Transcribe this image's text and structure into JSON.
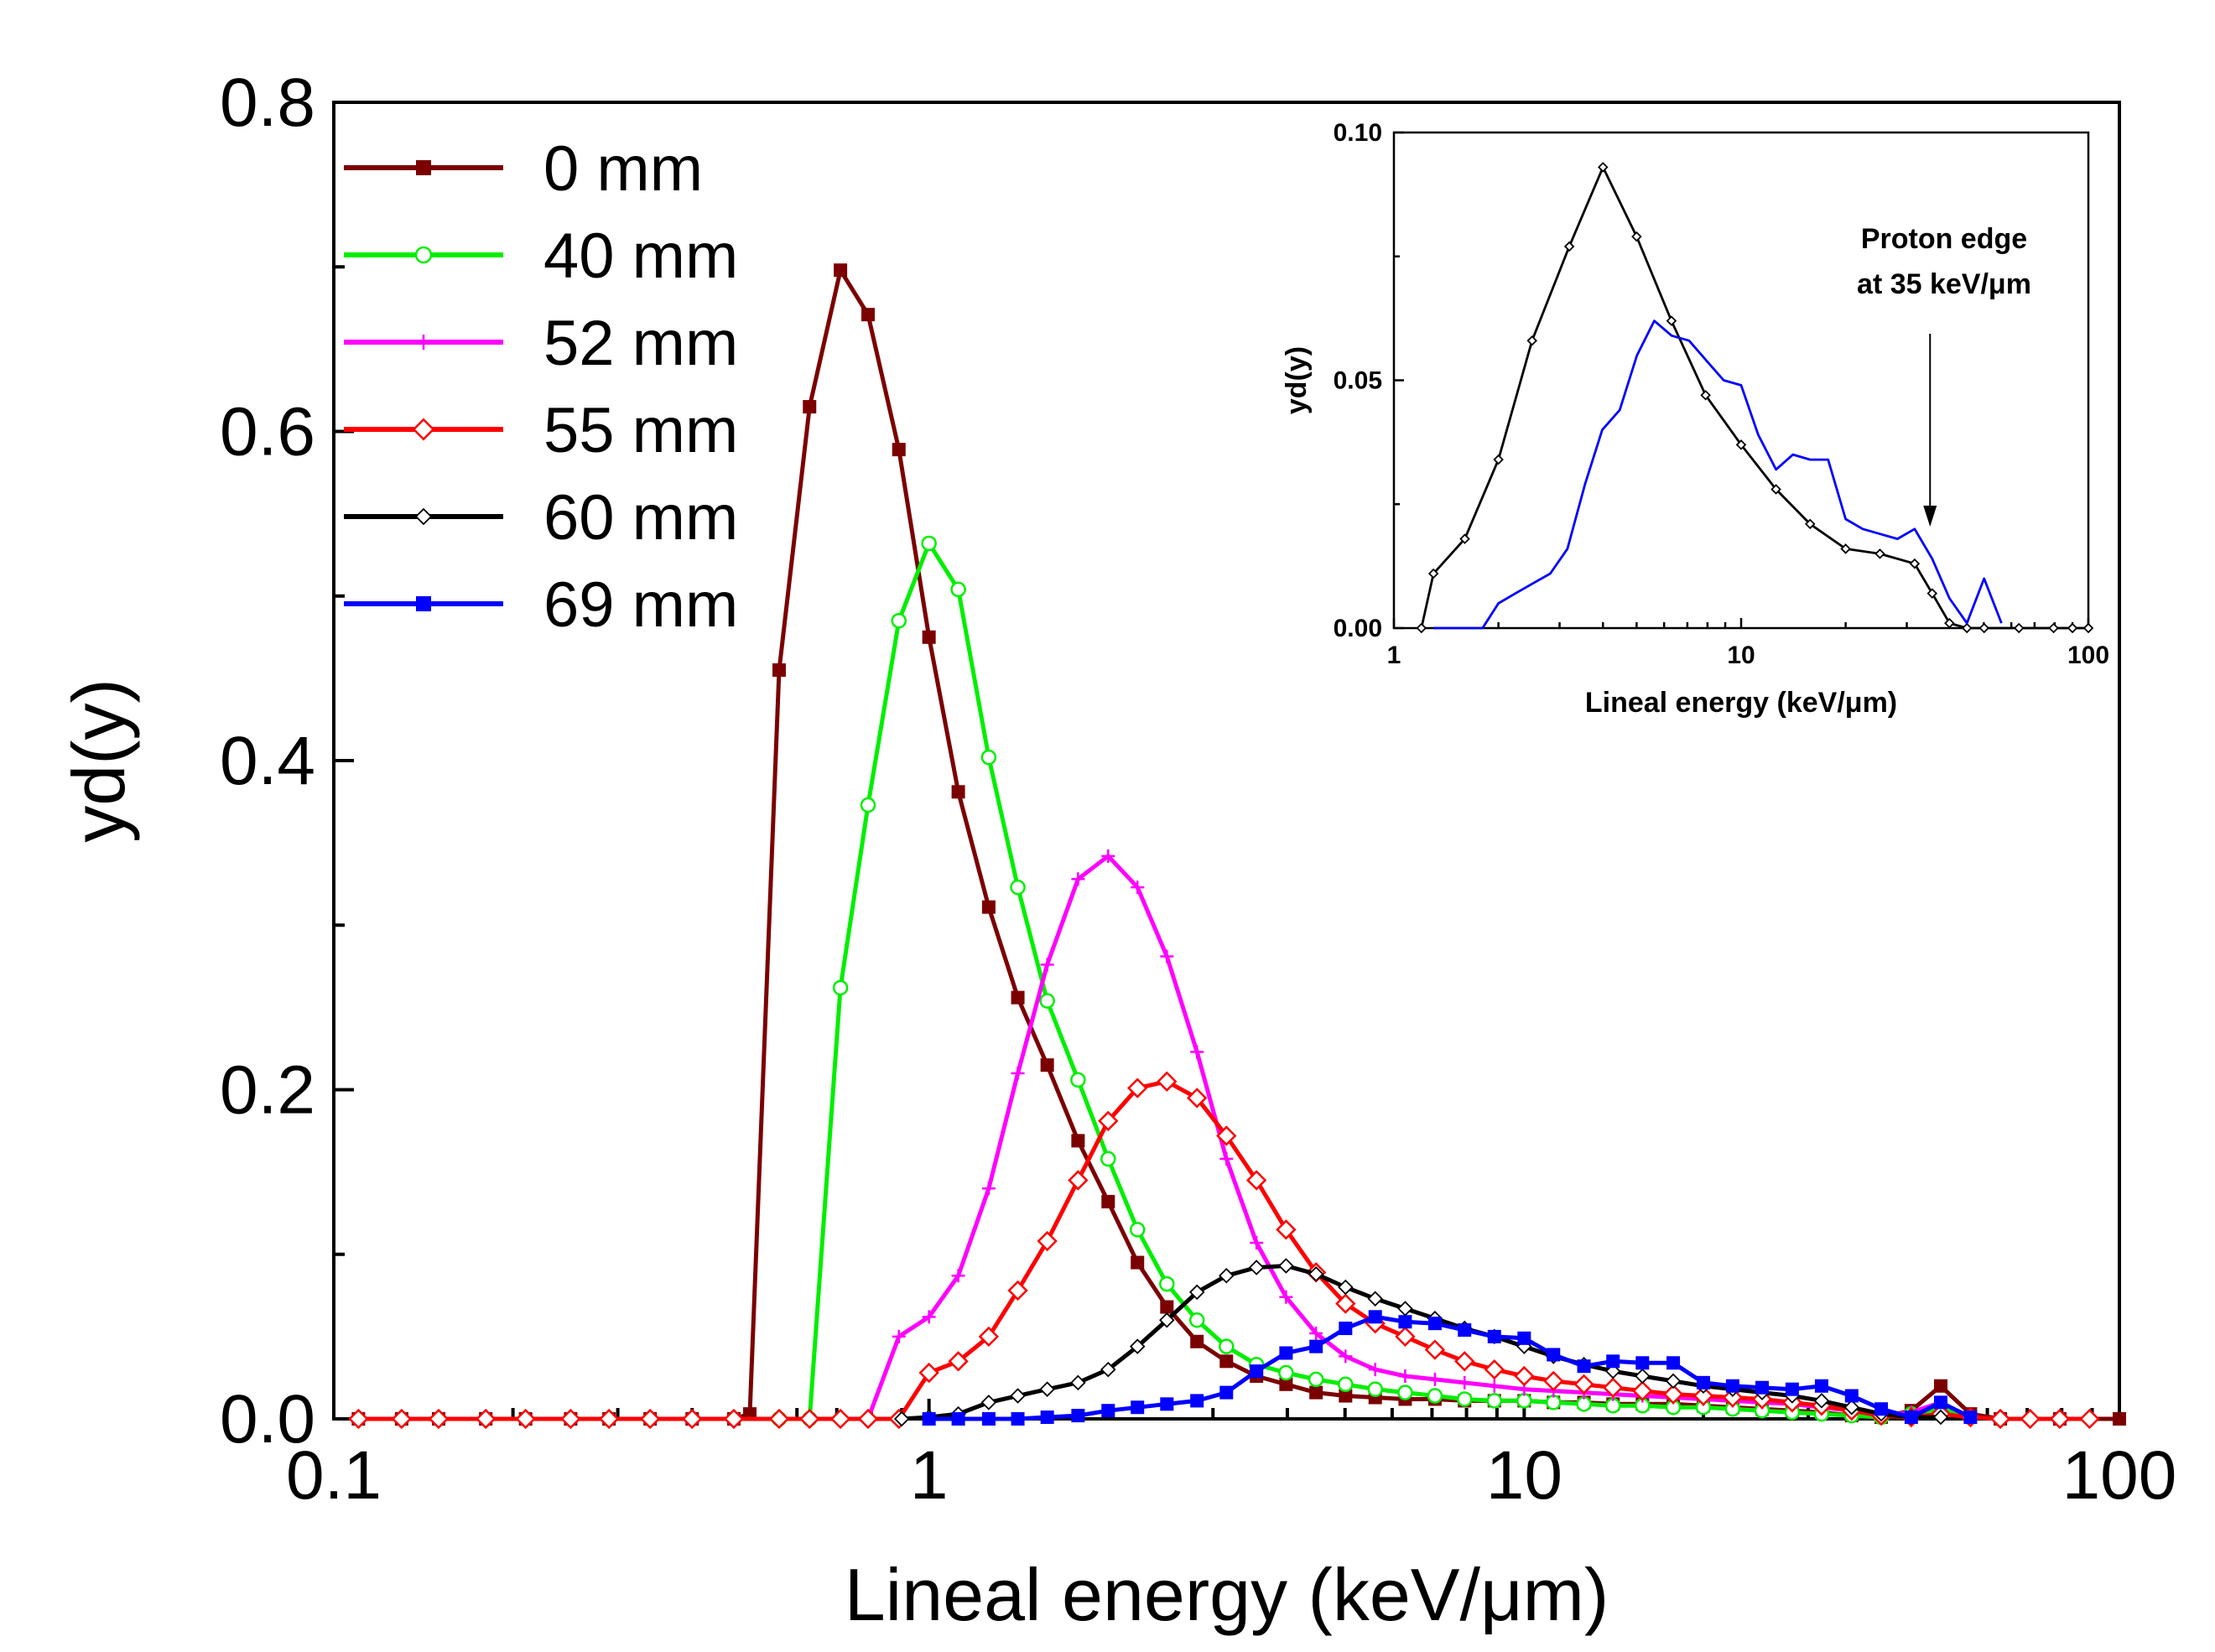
{
  "chart_data": [
    {
      "type": "line",
      "xscale": "log",
      "xlabel": "Lineal energy (keV/μm)",
      "ylabel": "yd(y)",
      "xlim": [
        0.1,
        100
      ],
      "ylim": [
        0,
        0.8
      ],
      "xticks": [
        "0.1",
        "1",
        "10",
        "100"
      ],
      "yticks": [
        "0.0",
        "0.2",
        "0.4",
        "0.6",
        "0.8"
      ],
      "legend_position": "top-left",
      "series": [
        {
          "name": "0 mm",
          "color": "#7b0000",
          "marker": "square-filled",
          "x": [
            0.11,
            0.13,
            0.15,
            0.18,
            0.21,
            0.25,
            0.29,
            0.34,
            0.4,
            0.47,
            0.5,
            0.56,
            0.63,
            0.71,
            0.79,
            0.89,
            1.0,
            1.12,
            1.26,
            1.41,
            1.58,
            1.78,
            2.0,
            2.24,
            2.51,
            2.82,
            3.16,
            3.55,
            3.98,
            4.47,
            5.01,
            5.62,
            6.31,
            7.08,
            7.94,
            8.91,
            10.0,
            11.2,
            12.6,
            14.1,
            15.8,
            17.8,
            20.0,
            22.4,
            25.1,
            28.2,
            31.6,
            35.5,
            39.8,
            44.7,
            50.1,
            56.2,
            63.1,
            79.4,
            100
          ],
          "y": [
            0,
            0,
            0,
            0,
            0,
            0,
            0,
            0,
            0,
            0,
            0.003,
            0.455,
            0.615,
            0.698,
            0.671,
            0.589,
            0.475,
            0.381,
            0.311,
            0.256,
            0.215,
            0.169,
            0.132,
            0.095,
            0.068,
            0.047,
            0.035,
            0.026,
            0.021,
            0.016,
            0.014,
            0.013,
            0.012,
            0.012,
            0.011,
            0.011,
            0.011,
            0.01,
            0.01,
            0.009,
            0.009,
            0.009,
            0.008,
            0.007,
            0.006,
            0.005,
            0.004,
            0.002,
            0.001,
            0.005,
            0.02,
            0.003,
            0,
            0,
            0
          ]
        },
        {
          "name": "40 mm",
          "color": "#00ee00",
          "marker": "circle-open",
          "x": [
            0.56,
            0.63,
            0.71,
            0.79,
            0.89,
            1.0,
            1.12,
            1.26,
            1.41,
            1.58,
            1.78,
            2.0,
            2.24,
            2.51,
            2.82,
            3.16,
            3.55,
            3.98,
            4.47,
            5.01,
            5.62,
            6.31,
            7.08,
            7.94,
            8.91,
            10.0,
            11.2,
            12.6,
            14.1,
            15.8,
            17.8,
            20.0,
            22.4,
            25.1,
            28.2,
            31.6,
            35.5,
            39.8,
            44.7,
            50.1,
            56.2
          ],
          "y": [
            0,
            0,
            0.262,
            0.373,
            0.485,
            0.532,
            0.504,
            0.402,
            0.323,
            0.254,
            0.206,
            0.158,
            0.115,
            0.082,
            0.06,
            0.044,
            0.033,
            0.028,
            0.024,
            0.021,
            0.018,
            0.016,
            0.014,
            0.012,
            0.011,
            0.011,
            0.01,
            0.009,
            0.008,
            0.008,
            0.007,
            0.007,
            0.006,
            0.005,
            0.004,
            0.003,
            0.002,
            0.001,
            0.003,
            0.006,
            0.001
          ]
        },
        {
          "name": "52 mm",
          "color": "#ff00ff",
          "marker": "plus",
          "x": [
            0.79,
            0.89,
            1.0,
            1.12,
            1.26,
            1.41,
            1.58,
            1.78,
            2.0,
            2.24,
            2.51,
            2.82,
            3.16,
            3.55,
            3.98,
            4.47,
            5.01,
            5.62,
            6.31,
            7.08,
            7.94,
            8.91,
            10.0,
            11.2,
            12.6,
            14.1,
            15.8,
            17.8,
            20.0,
            22.4,
            25.1,
            28.2,
            31.6,
            35.5,
            39.8,
            44.7,
            50.1
          ],
          "y": [
            0.0,
            0.05,
            0.062,
            0.087,
            0.14,
            0.21,
            0.276,
            0.328,
            0.342,
            0.323,
            0.281,
            0.223,
            0.158,
            0.107,
            0.074,
            0.052,
            0.038,
            0.03,
            0.026,
            0.024,
            0.022,
            0.02,
            0.018,
            0.017,
            0.016,
            0.015,
            0.014,
            0.013,
            0.012,
            0.011,
            0.01,
            0.009,
            0.007,
            0.005,
            0.002,
            0.004,
            0.01
          ]
        },
        {
          "name": "55 mm",
          "color": "#ff0000",
          "marker": "diamond-open",
          "x": [
            0.11,
            0.13,
            0.15,
            0.18,
            0.21,
            0.25,
            0.29,
            0.34,
            0.4,
            0.47,
            0.56,
            0.63,
            0.71,
            0.79,
            0.89,
            1.0,
            1.12,
            1.26,
            1.41,
            1.58,
            1.78,
            2.0,
            2.24,
            2.51,
            2.82,
            3.16,
            3.55,
            3.98,
            4.47,
            5.01,
            5.62,
            6.31,
            7.08,
            7.94,
            8.91,
            10.0,
            11.2,
            12.6,
            14.1,
            15.8,
            17.8,
            20.0,
            22.4,
            25.1,
            28.2,
            31.6,
            35.5,
            39.8,
            44.7,
            50.1,
            56.2,
            63.1,
            70.8,
            79.4,
            89.1
          ],
          "y": [
            0,
            0,
            0,
            0,
            0,
            0,
            0,
            0,
            0,
            0,
            0,
            0,
            0,
            0,
            0,
            0.028,
            0.035,
            0.05,
            0.078,
            0.108,
            0.145,
            0.181,
            0.201,
            0.205,
            0.195,
            0.172,
            0.145,
            0.115,
            0.089,
            0.07,
            0.058,
            0.05,
            0.042,
            0.035,
            0.03,
            0.026,
            0.023,
            0.021,
            0.019,
            0.017,
            0.015,
            0.014,
            0.013,
            0.012,
            0.01,
            0.008,
            0.005,
            0.002,
            0.001,
            0.003,
            0.001,
            0,
            0,
            0,
            0
          ]
        },
        {
          "name": "60 mm",
          "color": "#000000",
          "marker": "diamond-small",
          "x": [
            0.9,
            1.0,
            1.12,
            1.26,
            1.41,
            1.58,
            1.78,
            2.0,
            2.24,
            2.51,
            2.82,
            3.16,
            3.55,
            3.98,
            4.47,
            5.01,
            5.62,
            6.31,
            7.08,
            7.94,
            8.91,
            10.0,
            11.2,
            12.6,
            14.1,
            15.8,
            17.8,
            20.0,
            22.4,
            25.1,
            28.2,
            31.6,
            35.5,
            39.8,
            44.7,
            50.1
          ],
          "y": [
            0,
            0.001,
            0.003,
            0.01,
            0.014,
            0.018,
            0.022,
            0.03,
            0.044,
            0.06,
            0.077,
            0.087,
            0.092,
            0.093,
            0.088,
            0.08,
            0.073,
            0.067,
            0.061,
            0.055,
            0.05,
            0.044,
            0.038,
            0.033,
            0.029,
            0.026,
            0.023,
            0.02,
            0.018,
            0.016,
            0.014,
            0.011,
            0.007,
            0.003,
            0.001,
            0.001
          ]
        },
        {
          "name": "69 mm",
          "color": "#0000ff",
          "marker": "square-filled",
          "x": [
            1.0,
            1.12,
            1.26,
            1.41,
            1.58,
            1.78,
            2.0,
            2.24,
            2.51,
            2.82,
            3.16,
            3.55,
            3.98,
            4.47,
            5.01,
            5.62,
            6.31,
            7.08,
            7.94,
            8.91,
            10.0,
            11.2,
            12.6,
            14.1,
            15.8,
            17.8,
            20.0,
            22.4,
            25.1,
            28.2,
            31.6,
            35.5,
            39.8,
            44.7,
            50.1,
            56.2
          ],
          "y": [
            0,
            0,
            0,
            0,
            0.001,
            0.002,
            0.005,
            0.007,
            0.009,
            0.011,
            0.016,
            0.029,
            0.04,
            0.044,
            0.055,
            0.062,
            0.059,
            0.058,
            0.054,
            0.05,
            0.049,
            0.039,
            0.032,
            0.035,
            0.034,
            0.034,
            0.022,
            0.02,
            0.019,
            0.018,
            0.02,
            0.014,
            0.006,
            0.001,
            0.01,
            0.001
          ]
        }
      ]
    },
    {
      "type": "line",
      "xscale": "log",
      "xlabel": "Lineal energy (keV/μm)",
      "ylabel": "yd(y)",
      "xlim": [
        1,
        100
      ],
      "ylim": [
        0,
        0.1
      ],
      "xticks": [
        "1",
        "10",
        "100"
      ],
      "yticks": [
        "0.00",
        "0.05",
        "0.10"
      ],
      "annotation": [
        "Proton edge",
        "at 35 keV/μm"
      ],
      "annotation_x": 35,
      "series": [
        {
          "name": "60 mm",
          "color": "#000000",
          "marker": "diamond-small",
          "x": [
            1.2,
            1.3,
            1.6,
            2.0,
            2.5,
            3.2,
            4.0,
            5.0,
            6.3,
            7.9,
            10.0,
            12.6,
            15.8,
            20.0,
            25.1,
            31.6,
            35.5,
            39.8,
            44.7,
            50.1,
            63.1,
            79.4,
            90,
            100
          ],
          "y": [
            0,
            0.011,
            0.018,
            0.034,
            0.058,
            0.077,
            0.093,
            0.079,
            0.062,
            0.047,
            0.037,
            0.028,
            0.021,
            0.016,
            0.015,
            0.013,
            0.007,
            0.001,
            0,
            0,
            0,
            0,
            0,
            0
          ]
        },
        {
          "name": "69 mm",
          "color": "#0000ff",
          "marker": "none",
          "x": [
            1.3,
            1.6,
            1.8,
            2.0,
            2.24,
            2.51,
            2.82,
            3.16,
            3.55,
            3.98,
            4.47,
            5.01,
            5.62,
            6.31,
            7.08,
            7.94,
            8.91,
            10.0,
            11.2,
            12.6,
            14.1,
            15.8,
            17.8,
            20.0,
            22.4,
            25.1,
            28.2,
            31.6,
            35.5,
            39.8,
            44.7,
            50.1,
            56.2
          ],
          "y": [
            0,
            0,
            0,
            0.005,
            0.007,
            0.009,
            0.011,
            0.016,
            0.029,
            0.04,
            0.044,
            0.055,
            0.062,
            0.059,
            0.058,
            0.054,
            0.05,
            0.049,
            0.039,
            0.032,
            0.035,
            0.034,
            0.034,
            0.022,
            0.02,
            0.019,
            0.018,
            0.02,
            0.014,
            0.006,
            0.001,
            0.01,
            0.001
          ]
        }
      ]
    }
  ]
}
